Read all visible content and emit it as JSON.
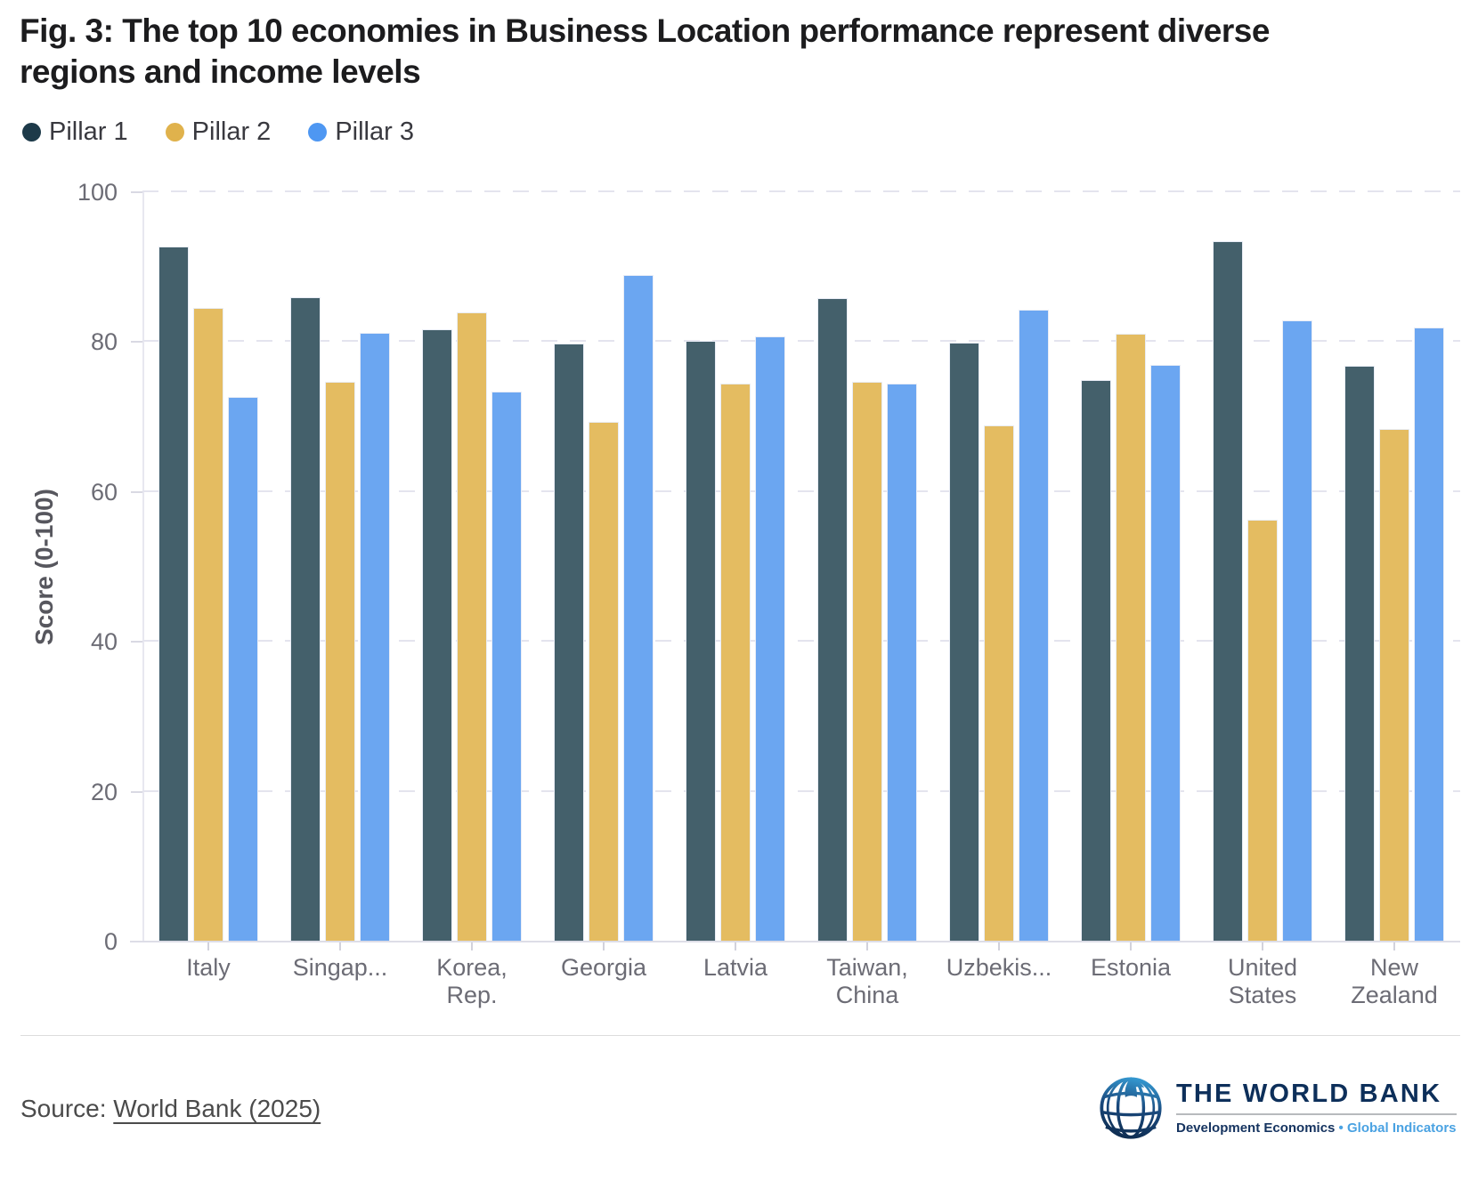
{
  "header": {
    "title_line1": "Fig. 3: The top 10 economies in Business Location performance represent diverse",
    "title_line2": "regions and income levels"
  },
  "chart_data": {
    "type": "bar",
    "title": "Fig. 3: The top 10 economies in Business Location performance represent diverse regions and income levels",
    "xlabel": "",
    "ylabel": "Score (0-100)",
    "ylim": [
      0,
      100
    ],
    "yticks": [
      0,
      20,
      40,
      60,
      80,
      100
    ],
    "grid": "dashed horizontal",
    "legend_position": "top-left",
    "categories": [
      "Italy",
      "Singap...",
      "Korea, Rep.",
      "Georgia",
      "Latvia",
      "Taiwan, China",
      "Uzbekis...",
      "Estonia",
      "United States",
      "New Zealand"
    ],
    "series": [
      {
        "name": "Pillar 1",
        "legend_color": "#1d3a49",
        "bar_color": "#44606b",
        "values": [
          92.8,
          86.0,
          81.7,
          79.8,
          80.2,
          85.9,
          79.9,
          75.0,
          93.5,
          76.9
        ]
      },
      {
        "name": "Pillar 2",
        "legend_color": "#e0b24c",
        "bar_color": "#e4bc61",
        "values": [
          84.6,
          74.7,
          84.0,
          69.4,
          74.5,
          74.7,
          68.9,
          81.1,
          56.3,
          68.4
        ]
      },
      {
        "name": "Pillar 3",
        "legend_color": "#4e97f2",
        "bar_color": "#6ba6f1",
        "values": [
          72.7,
          81.2,
          73.4,
          88.9,
          80.8,
          74.5,
          84.3,
          77.0,
          82.9,
          81.9
        ]
      }
    ]
  },
  "footer": {
    "source_prefix": "Source: ",
    "source_link": "World Bank (2025)"
  },
  "logo": {
    "name": "THE WORLD BANK",
    "tagline_left": "Development Economics",
    "tagline_sep": " • ",
    "tagline_right": "Global Indicators",
    "navy": "#0d2f5a",
    "blue": "#4aa2e2"
  }
}
